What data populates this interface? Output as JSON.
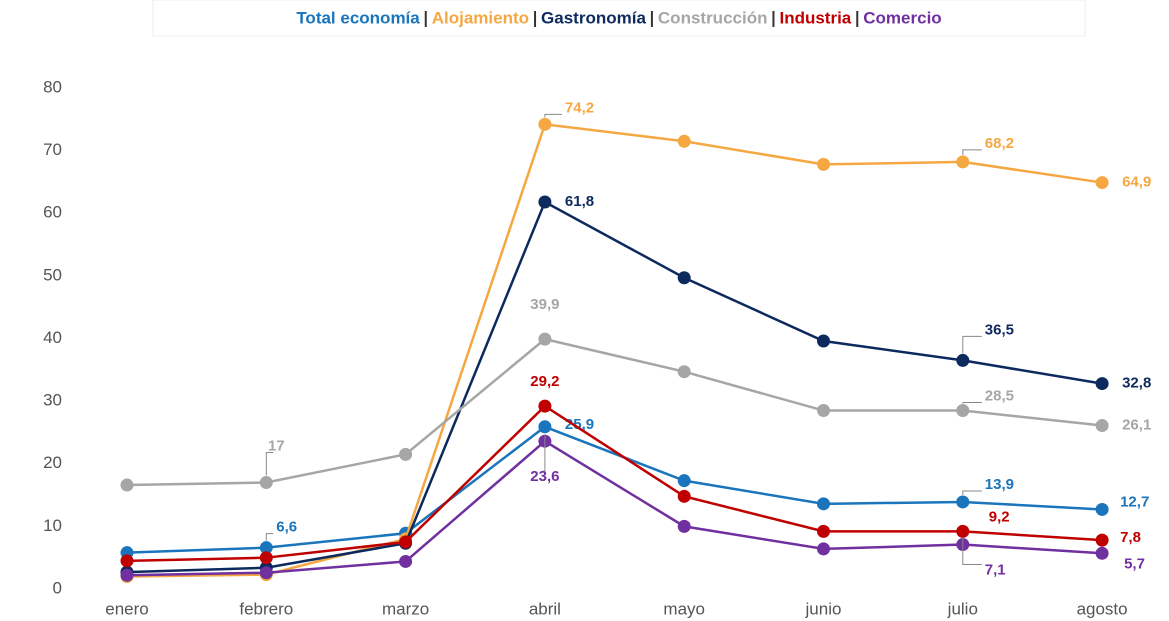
{
  "chart_data": {
    "type": "line",
    "categories": [
      "enero",
      "febrero",
      "marzo",
      "abril",
      "mayo",
      "junio",
      "julio",
      "agosto"
    ],
    "ylim": [
      0,
      80
    ],
    "yticks": [
      0,
      10,
      20,
      30,
      40,
      50,
      60,
      70,
      80
    ],
    "grid": false,
    "series": [
      {
        "name": "Total economía",
        "color": "#1a75bc",
        "values": [
          5.8,
          6.6,
          8.9,
          25.9,
          17.3,
          13.6,
          13.9,
          12.7
        ],
        "value_labels": [
          null,
          "6,6",
          null,
          "25,9",
          null,
          null,
          "13,9",
          "12,7"
        ]
      },
      {
        "name": "Alojamiento",
        "color": "#f5a742",
        "values": [
          2.0,
          2.3,
          8.0,
          74.2,
          71.5,
          67.8,
          68.2,
          64.9
        ],
        "value_labels": [
          null,
          null,
          null,
          "74,2",
          null,
          null,
          "68,2",
          "64,9"
        ]
      },
      {
        "name": "Gastronomía",
        "color": "#0d2a5e",
        "values": [
          2.7,
          3.4,
          7.3,
          61.8,
          49.7,
          39.6,
          36.5,
          32.8
        ],
        "value_labels": [
          null,
          null,
          null,
          "61,8",
          null,
          null,
          "36,5",
          "32,8"
        ]
      },
      {
        "name": "Construcción",
        "color": "#a6a6a6",
        "values": [
          16.6,
          17,
          21.5,
          39.9,
          34.7,
          28.5,
          28.5,
          26.1
        ],
        "value_labels": [
          null,
          "17",
          null,
          "39,9",
          null,
          null,
          "28,5",
          "26,1"
        ]
      },
      {
        "name": "Industria",
        "color": "#c00000",
        "values": [
          4.5,
          5.0,
          7.5,
          29.2,
          14.8,
          9.2,
          9.2,
          7.8
        ],
        "value_labels": [
          null,
          null,
          null,
          "29,2",
          null,
          null,
          "9,2",
          "7,8"
        ]
      },
      {
        "name": "Comercio",
        "color": "#7030a0",
        "values": [
          2.2,
          2.6,
          4.4,
          23.6,
          10.0,
          6.4,
          7.1,
          5.7
        ],
        "value_labels": [
          null,
          null,
          null,
          "23,6",
          null,
          null,
          "7,1",
          "5,7"
        ]
      }
    ]
  }
}
